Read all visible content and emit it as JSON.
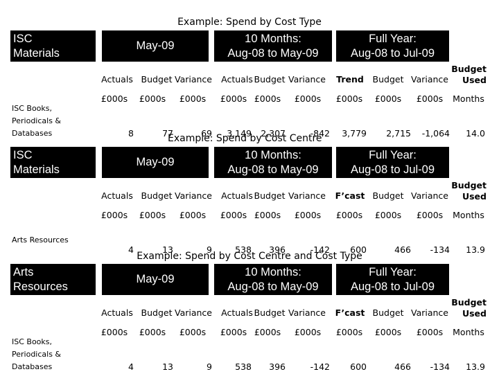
{
  "sections": [
    {
      "title": "Example: Spend by Cost Type",
      "box_label": "ISC\nMaterials",
      "period_current": "May-09",
      "period_ytd": "10 Months:\nAug-08 to May-09",
      "period_full": "Full Year:\nAug-08 to Jul-09",
      "headers": {
        "actuals": "Actuals",
        "budget": "Budget",
        "variance": "Variance",
        "ytd_actuals": "Actuals",
        "ytd_budget": "Budget",
        "ytd_variance": "Variance",
        "trend": "Trend",
        "fy_budget": "Budget",
        "fy_variance": "Variance",
        "budget_used": "Budget\nUsed"
      },
      "units": [
        "£000s",
        "£000s",
        "£000s",
        "£000s",
        "£000s",
        "£000s",
        "£000s",
        "£000s",
        "£000s",
        "Months"
      ],
      "row_label": "ISC Books,\nPeriodicals &\nDatabases",
      "values": [
        "8",
        "77",
        "69",
        "3,149",
        "2,307",
        "-842",
        "3,779",
        "2,715",
        "-1,064",
        "14.0"
      ]
    },
    {
      "title": "Example: Spend by Cost Centre",
      "box_label": "ISC\nMaterials",
      "period_current": "May-09",
      "period_ytd": "10 Months:\nAug-08 to May-09",
      "period_full": "Full Year:\nAug-08 to Jul-09",
      "headers": {
        "actuals": "Actuals",
        "budget": "Budget",
        "variance": "Variance",
        "ytd_actuals": "Actuals",
        "ytd_budget": "Budget",
        "ytd_variance": "Variance",
        "trend": "F’cast",
        "fy_budget": "Budget",
        "fy_variance": "Variance",
        "budget_used": "Budget\nUsed"
      },
      "units": [
        "£000s",
        "£000s",
        "£000s",
        "£000s",
        "£000s",
        "£000s",
        "£000s",
        "£000s",
        "£000s",
        "Months"
      ],
      "row_label": "Arts Resources",
      "values": [
        "4",
        "13",
        "9",
        "538",
        "396",
        "-142",
        "600",
        "466",
        "-134",
        "13.9"
      ]
    },
    {
      "title": "Example: Spend by Cost Centre and Cost Type",
      "box_label": "Arts\nResources",
      "period_current": "May-09",
      "period_ytd": "10 Months:\nAug-08 to May-09",
      "period_full": "Full Year:\nAug-08 to Jul-09",
      "headers": {
        "actuals": "Actuals",
        "budget": "Budget",
        "variance": "Variance",
        "ytd_actuals": "Actuals",
        "ytd_budget": "Budget",
        "ytd_variance": "Variance",
        "trend": "F’cast",
        "fy_budget": "Budget",
        "fy_variance": "Variance",
        "budget_used": "Budget\nUsed"
      },
      "units": [
        "£000s",
        "£000s",
        "£000s",
        "£000s",
        "£000s",
        "£000s",
        "£000s",
        "£000s",
        "£000s",
        "Months"
      ],
      "row_label": "ISC Books,\nPeriodicals &\nDatabases",
      "values": [
        "4",
        "13",
        "9",
        "538",
        "396",
        "-142",
        "600",
        "466",
        "-134",
        "13.9"
      ]
    }
  ]
}
